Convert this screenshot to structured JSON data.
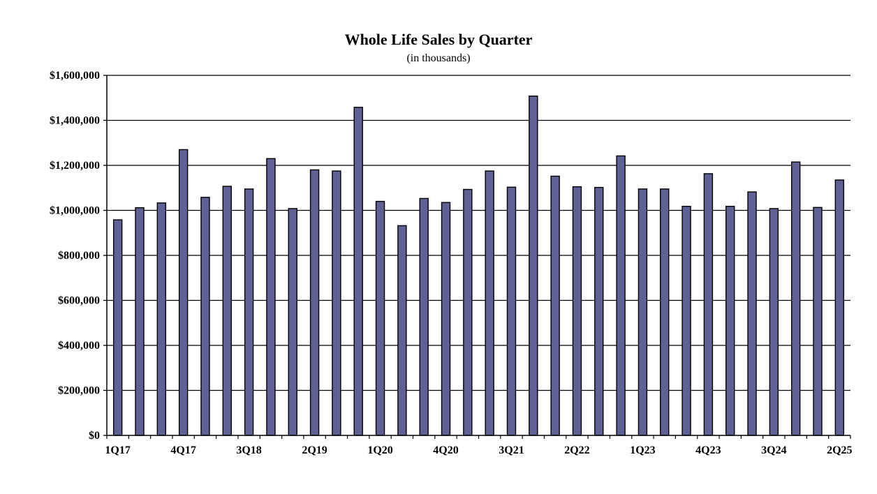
{
  "colors": {
    "bar": "#5F6195",
    "bar_stroke": "#000000",
    "grid": "#000000"
  },
  "chart_data": {
    "type": "bar",
    "title": "Whole Life Sales by Quarter",
    "subtitle": "(in thousands)",
    "xlabel": "",
    "ylabel": "",
    "ylim": [
      0,
      1600000
    ],
    "grid": true,
    "yticks": [
      0,
      200000,
      400000,
      600000,
      800000,
      1000000,
      1200000,
      1400000,
      1600000
    ],
    "ytick_labels": [
      "$0",
      "$200,000",
      "$400,000",
      "$600,000",
      "$800,000",
      "$1,000,000",
      "$1,200,000",
      "$1,400,000",
      "$1,600,000"
    ],
    "categories": [
      "1Q17",
      "2Q17",
      "3Q17",
      "4Q17",
      "1Q18",
      "2Q18",
      "3Q18",
      "4Q18",
      "1Q19",
      "2Q19",
      "3Q19",
      "4Q19",
      "1Q20",
      "2Q20",
      "3Q20",
      "4Q20",
      "1Q21",
      "2Q21",
      "3Q21",
      "4Q21",
      "1Q22",
      "2Q22",
      "3Q22",
      "4Q22",
      "1Q23",
      "2Q23",
      "3Q23",
      "4Q23",
      "1Q24",
      "2Q24",
      "3Q24",
      "4Q24",
      "1Q25",
      "2Q25"
    ],
    "visible_xticks": [
      "1Q17",
      "4Q17",
      "3Q18",
      "2Q19",
      "1Q20",
      "4Q20",
      "3Q21",
      "2Q22",
      "1Q23",
      "4Q23",
      "3Q24",
      "2Q25"
    ],
    "values": [
      958000,
      1012000,
      1033000,
      1270000,
      1058000,
      1107000,
      1095000,
      1230000,
      1008000,
      1180000,
      1175000,
      1458000,
      1040000,
      932000,
      1053000,
      1035000,
      1093000,
      1175000,
      1103000,
      1508000,
      1152000,
      1105000,
      1102000,
      1242000,
      1095000,
      1095000,
      1018000,
      1163000,
      1018000,
      1082000,
      1008000,
      1215000,
      1013000,
      1135000
    ]
  }
}
